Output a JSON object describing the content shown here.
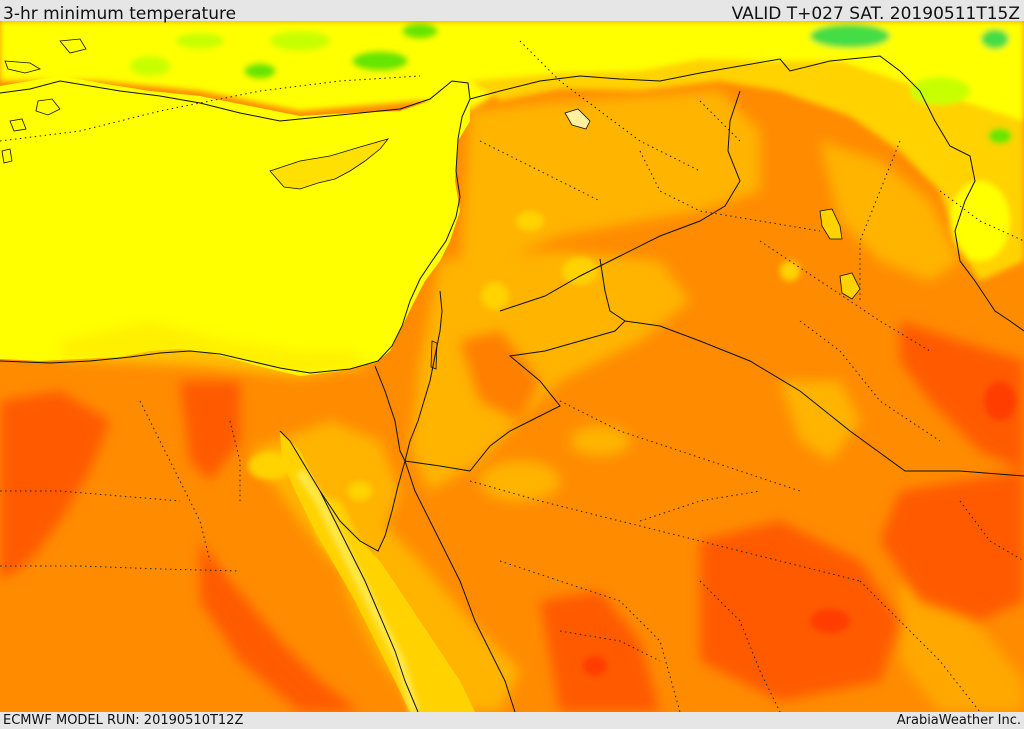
{
  "header": {
    "title": "3-hr minimum temperature",
    "valid": "VALID T+027 SAT. 20190511T15Z"
  },
  "footer": {
    "model_run": "ECMWF MODEL RUN: 20190510T12Z",
    "credit": "ArabiaWeather Inc."
  },
  "map": {
    "region": "Eastern Mediterranean and Middle East",
    "colors": {
      "sea": "#ffff00",
      "cool_green": "#66e600",
      "light_green": "#c8ff00",
      "yellow_orange": "#ffd200",
      "amber": "#ffb400",
      "orange": "#ff8c00",
      "deep_orange": "#ff5a00",
      "hot_red": "#ff3c00",
      "borders": "#111111"
    }
  }
}
